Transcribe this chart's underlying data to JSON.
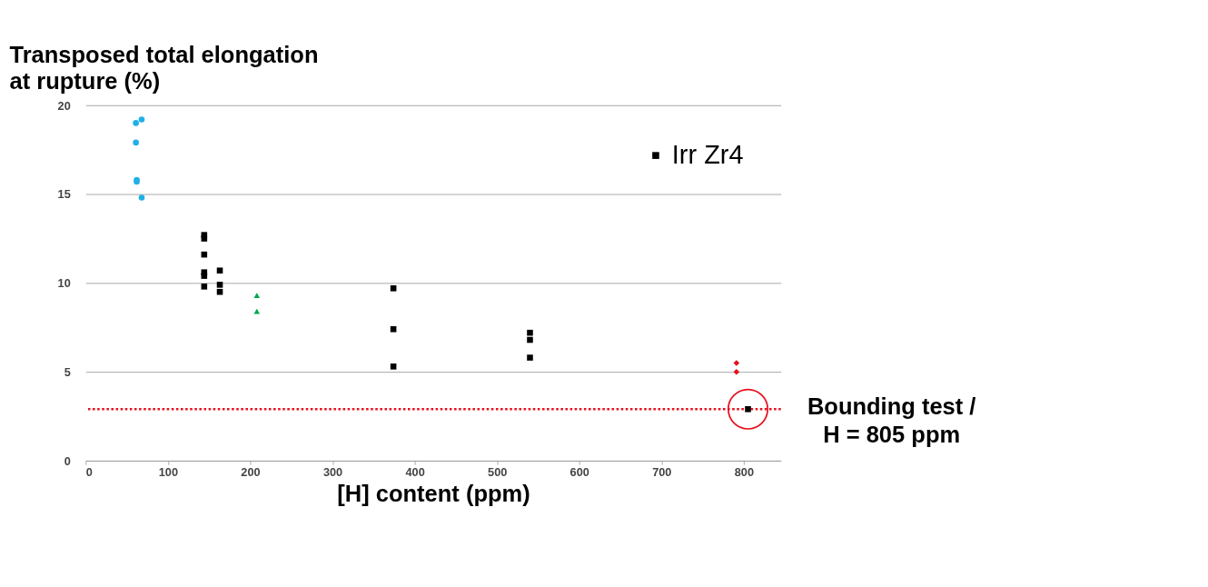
{
  "chart_data": {
    "type": "scatter",
    "ylabel": "Transposed total elongation at rupture (%)",
    "xlabel": "[H] content (ppm)",
    "xlim": [
      0,
      845
    ],
    "xticks": [
      0,
      100,
      200,
      300,
      400,
      500,
      600,
      700,
      800
    ],
    "ylim": [
      0,
      20
    ],
    "yticks": [
      0,
      5,
      10,
      15,
      20
    ],
    "grid": "y",
    "legend": "top right",
    "series": [
      {
        "name": "Irr Zr4",
        "color": "#000000",
        "marker": "square",
        "x": [
          144,
          144,
          144,
          144,
          144,
          144,
          163,
          163,
          163,
          374,
          374,
          374,
          540,
          540,
          540,
          805
        ],
        "values": [
          12.7,
          12.5,
          11.6,
          10.6,
          10.4,
          9.8,
          10.7,
          9.9,
          9.5,
          9.7,
          7.4,
          5.3,
          7.2,
          6.8,
          5.8,
          2.9
        ]
      },
      {
        "color": "#1fb0e8",
        "marker": "circle",
        "x": [
          61,
          68,
          61,
          62,
          62,
          68
        ],
        "values": [
          19.0,
          19.2,
          17.9,
          15.8,
          15.7,
          14.8
        ]
      },
      {
        "color": "#e8101e",
        "marker": "diamond",
        "x": [
          791,
          791
        ],
        "values": [
          5.5,
          5.0
        ]
      },
      {
        "color": "#00a651",
        "marker": "triangle",
        "x": [
          208,
          208
        ],
        "values": [
          9.3,
          8.4
        ]
      }
    ],
    "ref_lines": [
      {
        "axis": "y",
        "value": 2.9,
        "color": "#e8101e",
        "line_style": "dotted"
      }
    ],
    "annotations": [
      {
        "text": "Bounding test / H = 805 ppm",
        "x": 805,
        "y": 2.9
      }
    ]
  }
}
